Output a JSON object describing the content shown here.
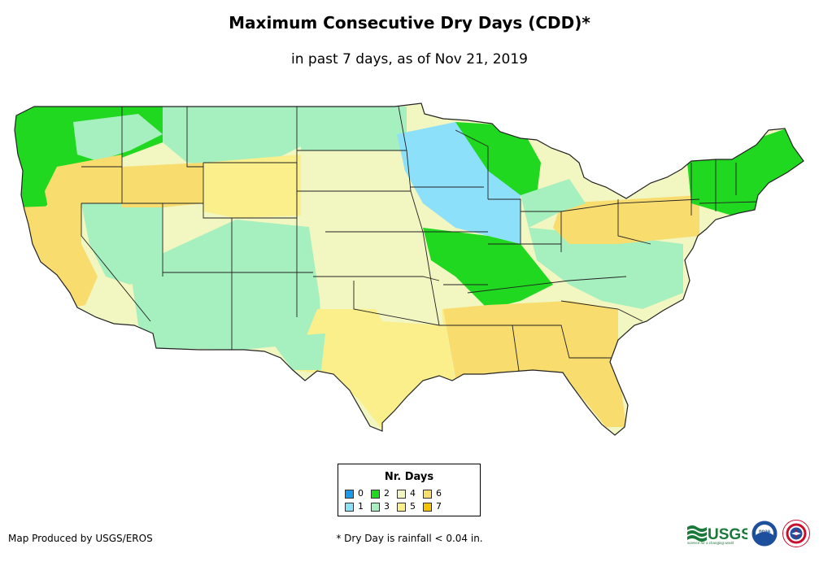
{
  "header": {
    "title": "Maximum Consecutive Dry Days (CDD)*",
    "subtitle": "in past 7 days, as of Nov 21, 2019"
  },
  "legend": {
    "title": "Nr. Days",
    "items": [
      {
        "label": "0",
        "color": "#1a9be8"
      },
      {
        "label": "1",
        "color": "#8ce0fa"
      },
      {
        "label": "2",
        "color": "#1fd81f"
      },
      {
        "label": "3",
        "color": "#a6efbe"
      },
      {
        "label": "4",
        "color": "#f2f6c0"
      },
      {
        "label": "5",
        "color": "#fbef8c"
      },
      {
        "label": "6",
        "color": "#f8dc6e"
      },
      {
        "label": "7",
        "color": "#f5c400"
      }
    ]
  },
  "footer": {
    "credit": "Map Produced by USGS/EROS",
    "footnote": "* Dry Day is rainfall < 0.04 in.",
    "usgs_logo_text": "USGS",
    "usgs_tagline": "science for a changing world",
    "noaa_logo_text": "noaa"
  },
  "colors": {
    "border": "#222222",
    "background": "#ffffff"
  }
}
